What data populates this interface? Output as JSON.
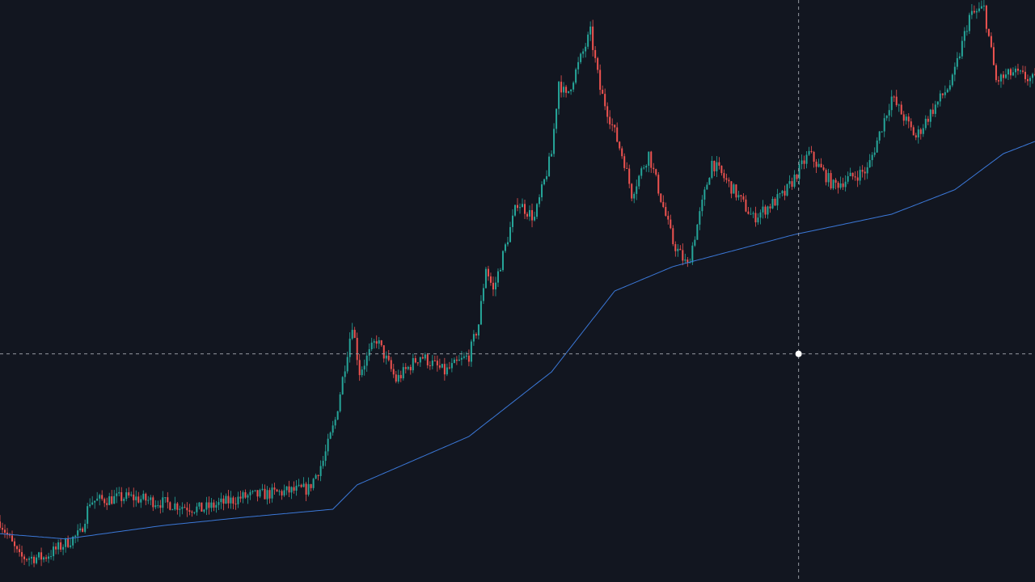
{
  "chart_data": {
    "type": "candlestick",
    "title": "",
    "xlabel": "",
    "ylabel": "",
    "grid": false,
    "ylim": [
      0,
      100
    ],
    "xlim": [
      0,
      426
    ],
    "close_path": {
      "x": [
        0,
        8,
        18,
        33,
        37,
        53,
        83,
        100,
        127,
        133,
        138,
        145,
        148,
        155,
        163,
        173,
        183,
        193,
        197,
        200,
        203,
        213,
        220,
        227,
        230,
        233,
        243,
        247,
        257,
        260,
        267,
        277,
        283,
        290,
        293,
        303,
        310,
        323,
        333,
        343,
        357,
        367,
        377,
        383,
        392,
        399,
        405,
        410,
        417,
        426
      ],
      "price": [
        10.4,
        4.2,
        4.2,
        8.3,
        13.9,
        14.6,
        12.5,
        14.6,
        16.0,
        20.8,
        27.8,
        44.4,
        36.1,
        41.7,
        34.7,
        38.9,
        36.1,
        38.9,
        44.4,
        54.2,
        50.0,
        65.3,
        62.5,
        73.6,
        86.1,
        83.3,
        94.4,
        84.7,
        72.2,
        66.7,
        73.6,
        58.3,
        54.2,
        66.7,
        72.2,
        66.7,
        62.5,
        66.7,
        73.6,
        68.1,
        70.8,
        83.3,
        76.4,
        80.6,
        86.1,
        97.2,
        98.6,
        86.1,
        87.5,
        86.1
      ]
    },
    "series": [
      {
        "type": "moving-average",
        "x": [
          0,
          27,
          67,
          100,
          137,
          147,
          193,
          227,
          253,
          277,
          327,
          367,
          393,
          413,
          426
        ],
        "price": [
          8.3,
          7.4,
          9.7,
          11.1,
          12.5,
          16.7,
          25.0,
          36.1,
          50.0,
          54.2,
          59.7,
          63.2,
          67.4,
          73.6,
          75.7
        ]
      }
    ],
    "crosshair": {
      "x": 328.7,
      "price": 39.2
    },
    "colors": {
      "background": "#121620",
      "up": "#26a69a",
      "down": "#ef5350",
      "moving_average": "#3b78d8",
      "crosshair": "#9598a1",
      "cursor": "#ffffff"
    }
  }
}
